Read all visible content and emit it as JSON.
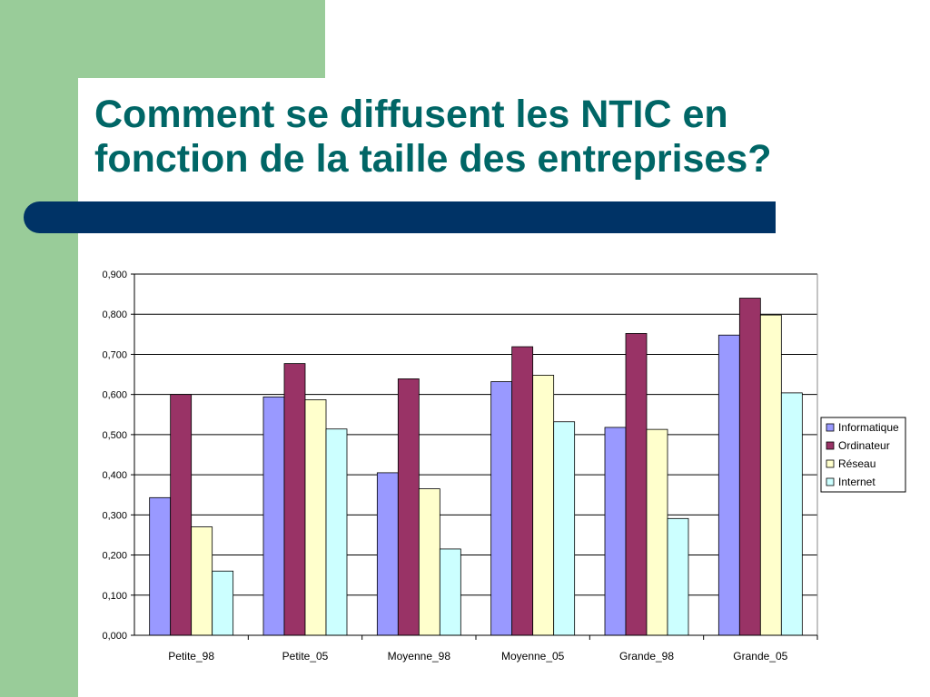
{
  "slide": {
    "title_line1": "Comment se diffusent les NTIC en",
    "title_line2": "fonction de la taille des entreprises?"
  },
  "colors": {
    "accent_green": "#99cc99",
    "title_teal": "#006666",
    "rule_navy": "#003366"
  },
  "chart_data": {
    "type": "bar",
    "title": "",
    "xlabel": "",
    "ylabel": "",
    "categories": [
      "Petite_98",
      "Petite_05",
      "Moyenne_98",
      "Moyenne_05",
      "Grande_98",
      "Grande_05"
    ],
    "y_ticks": [
      "0,000",
      "0,100",
      "0,200",
      "0,300",
      "0,400",
      "0,500",
      "0,600",
      "0,700",
      "0,800",
      "0,900"
    ],
    "ylim": [
      0,
      0.9
    ],
    "grid": true,
    "legend_position": "right",
    "series": [
      {
        "name": "Informatique",
        "color": "#9999ff",
        "values": [
          0.343,
          0.594,
          0.405,
          0.632,
          0.518,
          0.748
        ]
      },
      {
        "name": "Ordinateur",
        "color": "#993366",
        "values": [
          0.6,
          0.677,
          0.639,
          0.719,
          0.752,
          0.84
        ]
      },
      {
        "name": "Réseau",
        "color": "#ffffcc",
        "values": [
          0.27,
          0.587,
          0.365,
          0.648,
          0.513,
          0.798
        ]
      },
      {
        "name": "Internet",
        "color": "#ccffff",
        "values": [
          0.16,
          0.514,
          0.215,
          0.532,
          0.291,
          0.604
        ]
      }
    ]
  }
}
